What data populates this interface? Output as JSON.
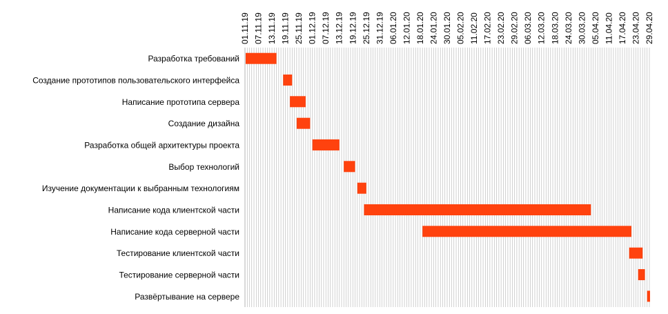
{
  "chart_data": {
    "type": "gantt",
    "date_format": "DD.MM.YY",
    "x_ticks": [
      "01.11.19",
      "07.11.19",
      "13.11.19",
      "19.11.19",
      "25.11.19",
      "01.12.19",
      "07.12.19",
      "13.12.19",
      "19.12.19",
      "25.12.19",
      "31.12.19",
      "06.01.20",
      "12.01.20",
      "18.01.20",
      "24.01.20",
      "30.01.20",
      "05.02.20",
      "11.02.20",
      "17.02.20",
      "23.02.20",
      "29.02.20",
      "06.03.20",
      "12.03.20",
      "18.03.20",
      "24.03.20",
      "30.03.20",
      "05.04.20",
      "11.04.20",
      "17.04.20",
      "23.04.20",
      "29.04.20"
    ],
    "xlim": [
      "2019-11-01",
      "2020-04-29"
    ],
    "grid": true,
    "bar_color": "#ff420e",
    "tasks": [
      {
        "name": "Разработка требований",
        "start": "2019-11-01",
        "end": "2019-11-15"
      },
      {
        "name": "Создание прототипов пользовательского интерфейса",
        "start": "2019-11-18",
        "end": "2019-11-22"
      },
      {
        "name": "Написание прототипа сервера",
        "start": "2019-11-21",
        "end": "2019-11-28"
      },
      {
        "name": "Создание дизайна",
        "start": "2019-11-24",
        "end": "2019-11-30"
      },
      {
        "name": "Разработка общей архитектуры проекта",
        "start": "2019-12-01",
        "end": "2019-12-13"
      },
      {
        "name": "Выбор технологий",
        "start": "2019-12-15",
        "end": "2019-12-20"
      },
      {
        "name": "Изучение документации к выбранным технологиям",
        "start": "2019-12-21",
        "end": "2019-12-25"
      },
      {
        "name": "Написание кода клиентской части",
        "start": "2019-12-24",
        "end": "2020-04-03"
      },
      {
        "name": "Написание кода серверной части",
        "start": "2020-01-19",
        "end": "2020-04-21"
      },
      {
        "name": "Тестирование клиентской части",
        "start": "2020-04-20",
        "end": "2020-04-26"
      },
      {
        "name": "Тестирование серверной части",
        "start": "2020-04-24",
        "end": "2020-04-27"
      },
      {
        "name": "Развёртывание на сервере",
        "start": "2020-04-28",
        "end": "2020-05-01"
      }
    ]
  }
}
